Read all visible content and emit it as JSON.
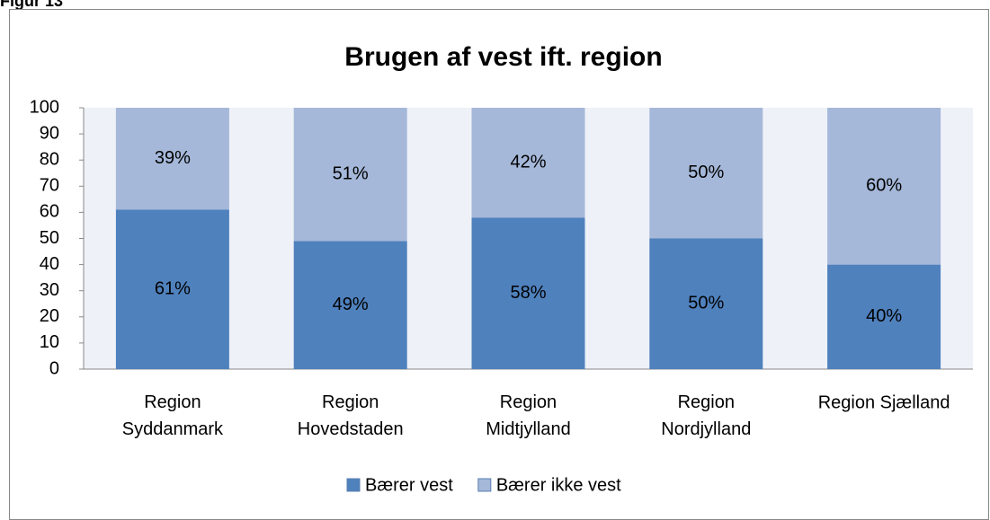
{
  "figure_label": "Figur 13",
  "chart_data": {
    "type": "stacked_bar",
    "title": "Brugen af vest ift. region",
    "categories": [
      "Region Syddanmark",
      "Region Hovedstaden",
      "Region Midtjylland",
      "Region Nordjylland",
      "Region Sjælland"
    ],
    "series": [
      {
        "name": "Bærer vest",
        "color": "#4f81bd",
        "values": [
          61,
          49,
          58,
          50,
          40
        ],
        "value_labels": [
          "61%",
          "49%",
          "58%",
          "50%",
          "40%"
        ]
      },
      {
        "name": "Bærer ikke vest",
        "color": "#a5b8d9",
        "values": [
          39,
          51,
          42,
          50,
          60
        ],
        "value_labels": [
          "39%",
          "51%",
          "42%",
          "50%",
          "60%"
        ]
      }
    ],
    "ylim": [
      0,
      100
    ],
    "yticks": [
      0,
      10,
      20,
      30,
      40,
      50,
      60,
      70,
      80,
      90,
      100
    ],
    "legend": "bottom"
  }
}
